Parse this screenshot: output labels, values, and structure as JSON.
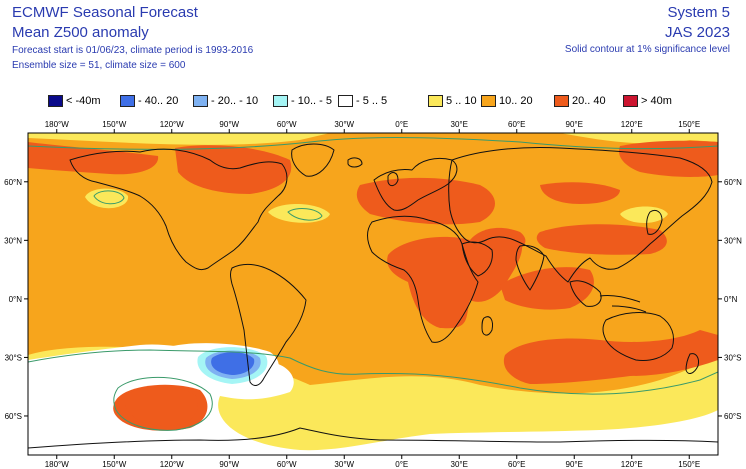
{
  "header": {
    "title": "ECMWF Seasonal Forecast",
    "variable": "Mean Z500 anomaly",
    "forecast_info": "Forecast start is 01/06/23, climate period is 1993-2016",
    "ensemble_info": "Ensemble size = 51, climate size = 600",
    "system": "System 5",
    "season": "JAS 2023",
    "significance_note": "Solid contour at 1% significance level"
  },
  "legend": [
    {
      "label": "< -40m",
      "color": "#0a0a8a"
    },
    {
      "label": "- 40.. 20",
      "color": "#3f6fe6"
    },
    {
      "label": "- 20.. - 10",
      "color": "#7fb2f2"
    },
    {
      "label": "- 10.. - 5",
      "color": "#a5f5f5"
    },
    {
      "label": "- 5 .. 5",
      "color": "#ffffff"
    },
    {
      "label": "5 .. 10",
      "color": "#fbe85a"
    },
    {
      "label": "10.. 20",
      "color": "#f7a51c"
    },
    {
      "label": "20.. 40",
      "color": "#ee5b1c"
    },
    {
      "label": "> 40m",
      "color": "#cc1530"
    }
  ],
  "axes": {
    "lon_labels_top": [
      "180°W",
      "150°W",
      "120°W",
      "90°W",
      "60°W",
      "30°W",
      "0°E",
      "30°E",
      "60°E",
      "90°E",
      "120°E",
      "150°E"
    ],
    "lon_labels_bottom": [
      "180°W",
      "150°W",
      "120°W",
      "90°W",
      "60°W",
      "30°W",
      "0°E",
      "30°E",
      "60°E",
      "90°E",
      "120°E",
      "150°E"
    ],
    "lat_labels_left": [
      "60°N",
      "30°N",
      "0°N",
      "30°S",
      "60°S"
    ],
    "lat_labels_right": [
      "60°N",
      "30°N",
      "0°N",
      "30°S",
      "60°S"
    ]
  },
  "colors": {
    "anomaly_5_10": "#fbe85a",
    "anomaly_10_20": "#f7a51c",
    "anomaly_20_40": "#ee5b1c",
    "anomaly_neg_5_10": "#a5f5f5",
    "anomaly_neg_10_20": "#7fb2f2",
    "anomaly_neg_20_40": "#3f6fe6",
    "neutral": "#ffffff",
    "significance_contour": "#3a9a6a",
    "coastline": "#111111"
  }
}
